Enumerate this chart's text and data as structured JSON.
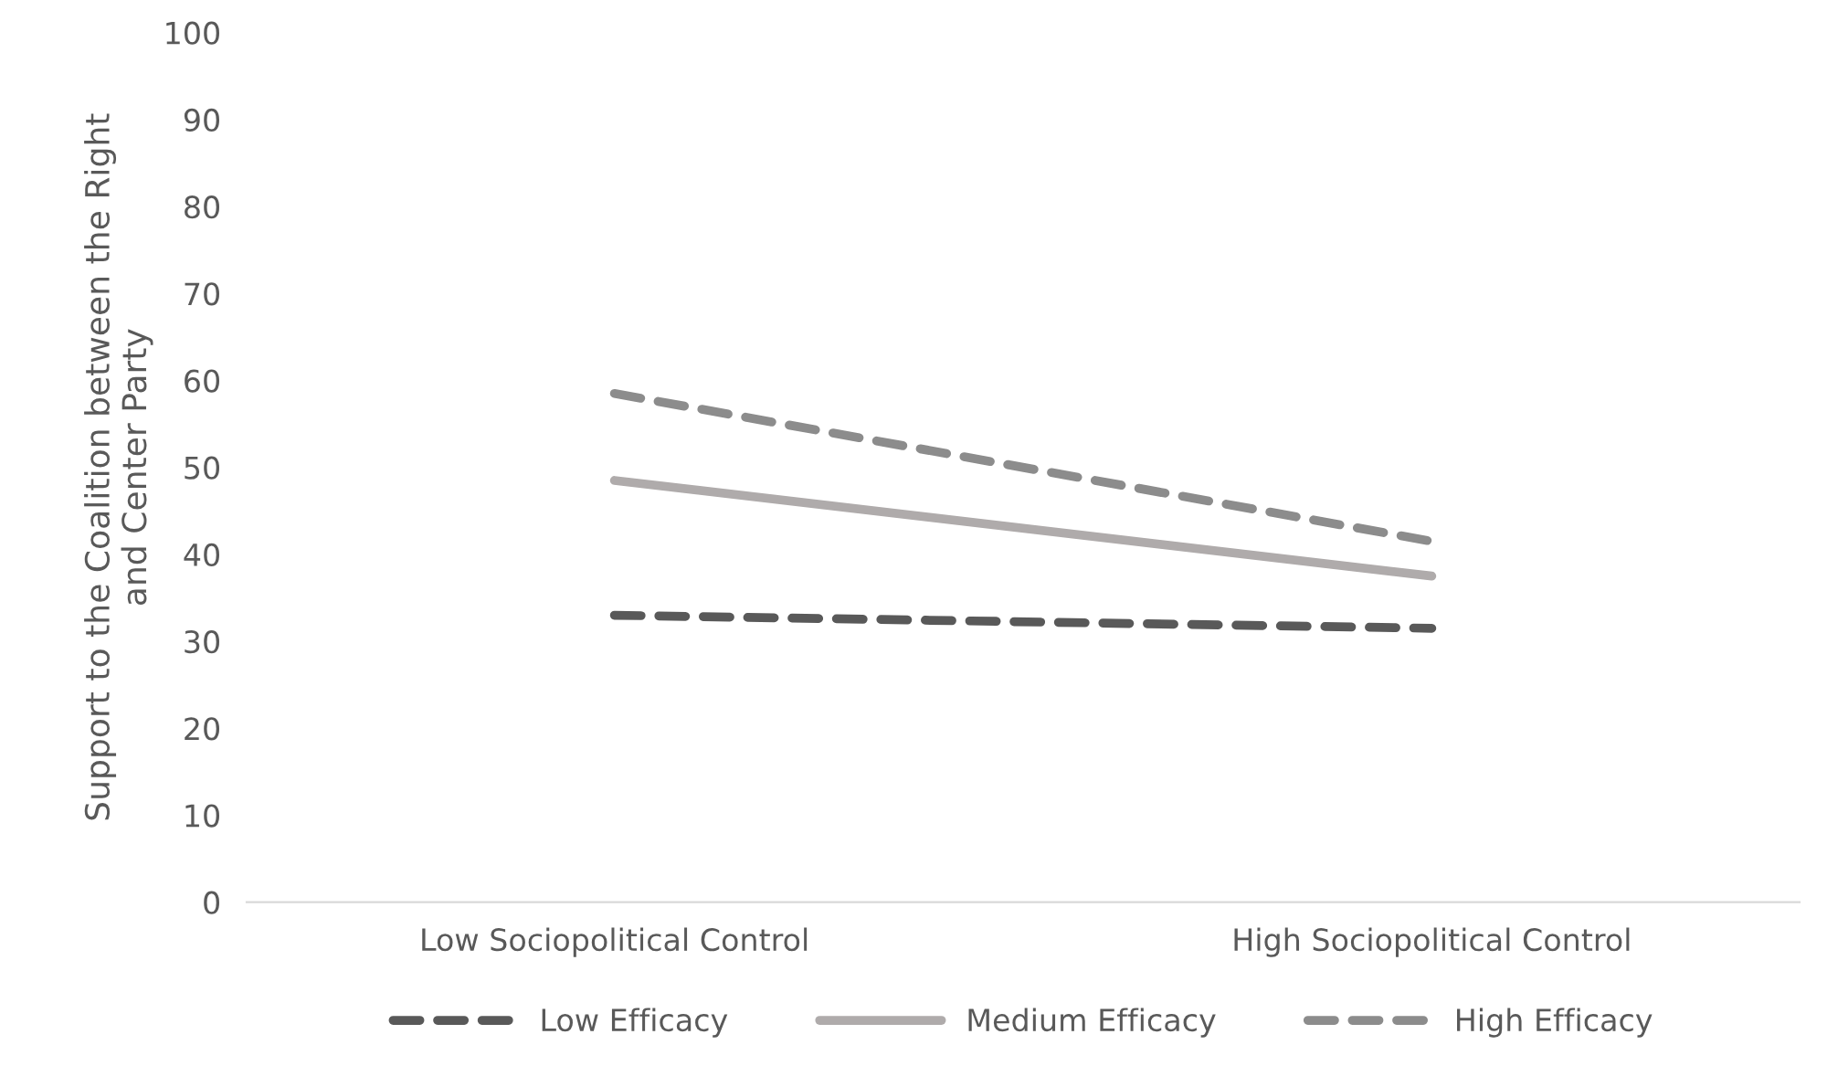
{
  "chart_data": {
    "type": "line",
    "ylabel": "Support to the Coalition between the Right and Center Party",
    "categories": [
      "Low Sociopolitical Control",
      "High Sociopolitical Control"
    ],
    "series": [
      {
        "name": "Low Efficacy",
        "color": "#595959",
        "values": [
          33,
          31.5
        ],
        "line_style": "dashed"
      },
      {
        "name": "Medium Efficacy",
        "color": "#afabab",
        "values": [
          48.5,
          37.5
        ],
        "line_style": "solid"
      },
      {
        "name": "High Efficacy",
        "color": "#8c8c8c",
        "values": [
          58.5,
          41.5
        ],
        "line_style": "dashed"
      }
    ],
    "ylim": [
      0,
      100
    ],
    "yticks": [
      0,
      10,
      20,
      30,
      40,
      50,
      60,
      70,
      80,
      90,
      100
    ],
    "grid": false,
    "legend": "bottom",
    "marker": "none"
  }
}
